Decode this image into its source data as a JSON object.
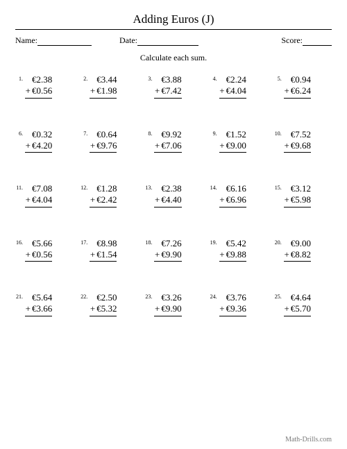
{
  "title": "Adding Euros (J)",
  "labels": {
    "name": "Name:",
    "date": "Date:",
    "score": "Score:"
  },
  "instruction": "Calculate each sum.",
  "footer": "Math-Drills.com",
  "currency": "€",
  "plus": "+",
  "problems": [
    {
      "n": "1.",
      "a": "2.38",
      "b": "0.56"
    },
    {
      "n": "2.",
      "a": "3.44",
      "b": "1.98"
    },
    {
      "n": "3.",
      "a": "3.88",
      "b": "7.42"
    },
    {
      "n": "4.",
      "a": "2.24",
      "b": "4.04"
    },
    {
      "n": "5.",
      "a": "0.94",
      "b": "6.24"
    },
    {
      "n": "6.",
      "a": "0.32",
      "b": "4.20"
    },
    {
      "n": "7.",
      "a": "0.64",
      "b": "9.76"
    },
    {
      "n": "8.",
      "a": "9.92",
      "b": "7.06"
    },
    {
      "n": "9.",
      "a": "1.52",
      "b": "9.00"
    },
    {
      "n": "10.",
      "a": "7.52",
      "b": "9.68"
    },
    {
      "n": "11.",
      "a": "7.08",
      "b": "4.04"
    },
    {
      "n": "12.",
      "a": "1.28",
      "b": "2.42"
    },
    {
      "n": "13.",
      "a": "2.38",
      "b": "4.40"
    },
    {
      "n": "14.",
      "a": "6.16",
      "b": "6.96"
    },
    {
      "n": "15.",
      "a": "3.12",
      "b": "5.98"
    },
    {
      "n": "16.",
      "a": "5.66",
      "b": "0.56"
    },
    {
      "n": "17.",
      "a": "8.98",
      "b": "1.54"
    },
    {
      "n": "18.",
      "a": "7.26",
      "b": "9.90"
    },
    {
      "n": "19.",
      "a": "5.42",
      "b": "9.88"
    },
    {
      "n": "20.",
      "a": "9.00",
      "b": "8.82"
    },
    {
      "n": "21.",
      "a": "5.64",
      "b": "3.66"
    },
    {
      "n": "22.",
      "a": "2.50",
      "b": "5.32"
    },
    {
      "n": "23.",
      "a": "3.26",
      "b": "9.90"
    },
    {
      "n": "24.",
      "a": "3.76",
      "b": "9.36"
    },
    {
      "n": "25.",
      "a": "4.64",
      "b": "5.70"
    }
  ]
}
